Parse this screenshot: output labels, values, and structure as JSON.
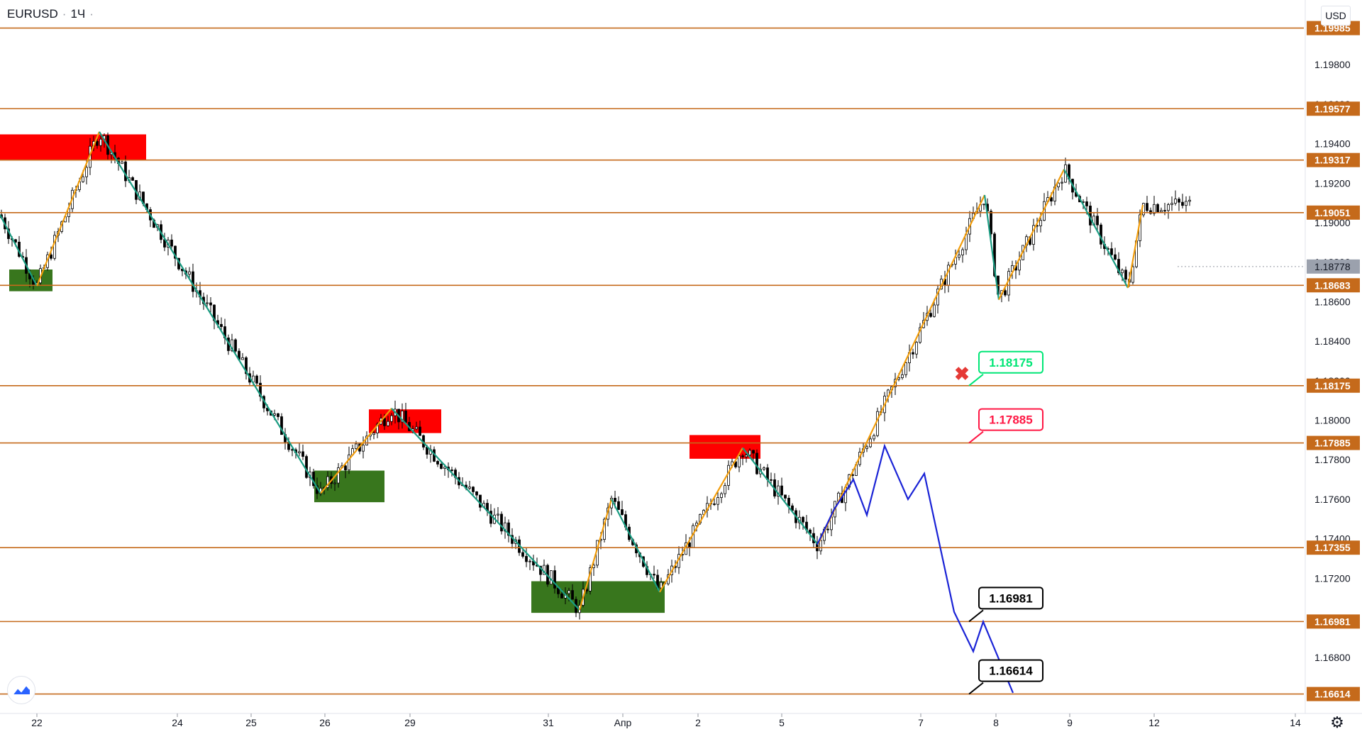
{
  "header": {
    "symbol": "EURUSD",
    "interval": "1Ч"
  },
  "currency_button": "USD",
  "colors": {
    "level_line": "#c56a1b",
    "level_label_bg": "#c56a1b",
    "up_leg": "#f29d0b",
    "down_leg": "#1a9c82",
    "projection": "#1a23d6",
    "supply_zone": "#ff0000",
    "demand_zone": "#38761d",
    "candle": "#000000"
  },
  "icons": {
    "logo": "tradingview-logo-icon",
    "settings": "gear-icon",
    "cancel_marker": "red-x-icon"
  },
  "chart_data": {
    "type": "candlestick",
    "title": "",
    "symbol": "EURUSD",
    "timeframe": "1Ч",
    "x_ticks": [
      "22",
      "24",
      "25",
      "26",
      "29",
      "31",
      "Апр",
      "2",
      "5",
      "7",
      "8",
      "9",
      "12",
      "14"
    ],
    "y_ticks": [
      "1.19800",
      "1.19600",
      "1.19400",
      "1.19200",
      "1.19000",
      "1.18800",
      "1.18600",
      "1.18400",
      "1.18200",
      "1.18000",
      "1.17800",
      "1.17600",
      "1.17400",
      "1.17200",
      "1.17000",
      "1.16800",
      "1.16600"
    ],
    "ylim": [
      1.1653,
      1.2012
    ],
    "current_price": "1.18778",
    "levels": [
      "1.19985",
      "1.19577",
      "1.19317",
      "1.19051",
      "1.18683",
      "1.18175",
      "1.17885",
      "1.17355",
      "1.16981",
      "1.16614"
    ],
    "callouts": [
      {
        "text": "1.18175",
        "color": "#00e676"
      },
      {
        "text": "1.17885",
        "color": "#ff1744"
      },
      {
        "text": "1.16981",
        "color": "#000000"
      },
      {
        "text": "1.16614",
        "color": "#000000"
      }
    ],
    "zigzag_prices": [
      1.1904,
      1.1868,
      1.1946,
      1.1763,
      1.1806,
      1.1704,
      1.176,
      1.1713,
      1.1786,
      1.1737,
      1.1914,
      1.1861,
      1.1927,
      1.1867,
      1.1909
    ],
    "projection_prices": [
      1.1737,
      1.1755,
      1.177,
      1.1752,
      1.1787,
      1.176,
      1.1773,
      1.1703,
      1.1683,
      1.1698,
      1.1662
    ],
    "supply_zones": [
      [
        1.19317,
        1.19447
      ],
      [
        1.17935,
        1.18055
      ],
      [
        1.17805,
        1.17925
      ]
    ],
    "demand_zones": [
      [
        1.18653,
        1.18763
      ],
      [
        1.17585,
        1.17745
      ],
      [
        1.17025,
        1.17185
      ]
    ]
  }
}
